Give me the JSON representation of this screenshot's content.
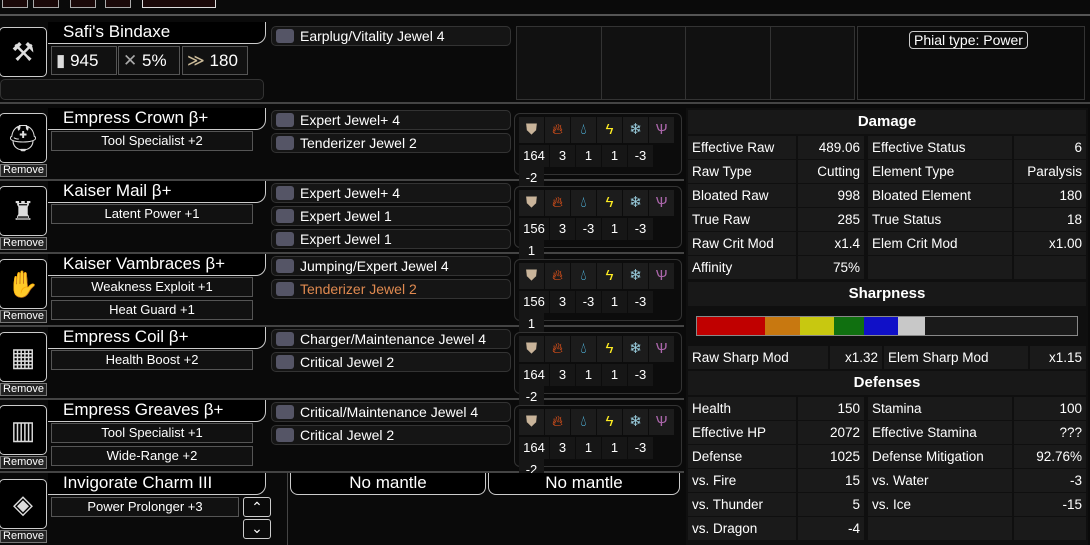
{
  "weapon": {
    "name": "Safi's Bindaxe",
    "attack": "945",
    "affinity": "5%",
    "element": "180",
    "decorations": [
      "Earplug/Vitality Jewel 4"
    ],
    "phial": "Phial type: Power"
  },
  "armor": [
    {
      "name": "Empress Crown β+",
      "icon": "helmet-icon",
      "glyph": "⛑",
      "skills": [
        "Tool Specialist +2"
      ],
      "decorations": [
        "Expert Jewel+ 4",
        "Tenderizer Jewel 2"
      ],
      "res": [
        "164",
        "3",
        "1",
        "1",
        "-3",
        "-2"
      ],
      "remove": "Remove"
    },
    {
      "name": "Kaiser Mail β+",
      "icon": "chest-icon",
      "glyph": "♜",
      "skills": [
        "Latent Power +1"
      ],
      "decorations": [
        "Expert Jewel+ 4",
        "Expert Jewel 1",
        "Expert Jewel 1"
      ],
      "res": [
        "156",
        "3",
        "-3",
        "1",
        "-3",
        "1"
      ],
      "remove": "Remove"
    },
    {
      "name": "Kaiser Vambraces β+",
      "icon": "gauntlet-icon",
      "glyph": "✋",
      "skills": [
        "Weakness Exploit +1",
        "Heat Guard +1"
      ],
      "decorations": [
        "Jumping/Expert Jewel 4",
        "Tenderizer Jewel 2"
      ],
      "res": [
        "156",
        "3",
        "-3",
        "1",
        "-3",
        "1"
      ],
      "remove": "Remove"
    },
    {
      "name": "Empress Coil β+",
      "icon": "waist-icon",
      "glyph": "▦",
      "skills": [
        "Health Boost +2"
      ],
      "decorations": [
        "Charger/Maintenance Jewel 4",
        "Critical Jewel 2"
      ],
      "res": [
        "164",
        "3",
        "1",
        "1",
        "-3",
        "-2"
      ],
      "remove": "Remove"
    },
    {
      "name": "Empress Greaves β+",
      "icon": "legs-icon",
      "glyph": "▥",
      "skills": [
        "Tool Specialist +1",
        "Wide-Range +2"
      ],
      "decorations": [
        "Critical/Maintenance Jewel 4",
        "Critical Jewel 2"
      ],
      "res": [
        "164",
        "3",
        "1",
        "1",
        "-3",
        "-2"
      ],
      "remove": "Remove"
    }
  ],
  "highlight_color": "#e08a50",
  "charm": {
    "name": "Invigorate Charm III",
    "skill": "Power Prolonger +3",
    "remove": "Remove",
    "mantles": [
      "No mantle",
      "No mantle"
    ]
  },
  "damage": {
    "title": "Damage",
    "rows": [
      [
        "Effective Raw",
        "489.06",
        "Effective Status",
        "6"
      ],
      [
        "Raw Type",
        "Cutting",
        "Element Type",
        "Paralysis"
      ],
      [
        "Bloated Raw",
        "998",
        "Bloated Element",
        "180"
      ],
      [
        "True Raw",
        "285",
        "True Status",
        "18"
      ],
      [
        "Raw Crit Mod",
        "x1.4",
        "Elem Crit Mod",
        "x1.00"
      ],
      [
        "Affinity",
        "75%",
        "",
        ""
      ]
    ]
  },
  "sharpness": {
    "title": "Sharpness",
    "segments": [
      {
        "color": "#c00000",
        "value": 18
      },
      {
        "color": "#c87810",
        "value": 9
      },
      {
        "color": "#c8c810",
        "value": 9
      },
      {
        "color": "#107010",
        "value": 8
      },
      {
        "color": "#1010c8",
        "value": 9
      },
      {
        "color": "#c8c8c8",
        "value": 7
      }
    ],
    "max": 100,
    "raw_label": "Raw Sharp Mod",
    "raw": "x1.32",
    "elem_label": "Elem Sharp Mod",
    "elem": "x1.15"
  },
  "defenses": {
    "title": "Defenses",
    "rows": [
      [
        "Health",
        "150",
        "Stamina",
        "100"
      ],
      [
        "Effective HP",
        "2072",
        "Effective Stamina",
        "???"
      ],
      [
        "Defense",
        "1025",
        "Defense Mitigation",
        "92.76%"
      ],
      [
        "vs. Fire",
        "15",
        "vs. Water",
        "-3"
      ],
      [
        "vs. Thunder",
        "5",
        "vs. Ice",
        "-15"
      ],
      [
        "vs. Dragon",
        "-4",
        "",
        ""
      ]
    ]
  }
}
